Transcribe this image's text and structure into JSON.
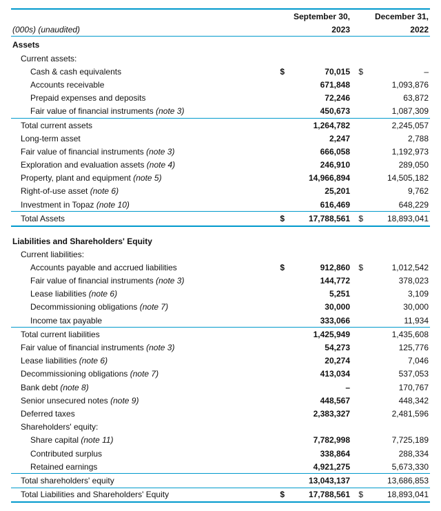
{
  "accent_color": "#0099cc",
  "header": {
    "col1a": "September 30,",
    "col1b": "2023",
    "col2a": "December 31,",
    "col2b": "2022",
    "left_label": "(000s) (unaudited)"
  },
  "sections": {
    "assets_title": "Assets",
    "current_assets_title": "Current assets:",
    "cash": {
      "label": "Cash & cash equivalents",
      "sym1": "$",
      "v1": "70,015",
      "sym2": "$",
      "v2": "–"
    },
    "ar": {
      "label": "Accounts receivable",
      "v1": "671,848",
      "v2": "1,093,876"
    },
    "prepaid": {
      "label": "Prepaid expenses and deposits",
      "v1": "72,246",
      "v2": "63,872"
    },
    "fvfi_ca": {
      "label": "Fair value of financial instruments ",
      "note": "(note 3)",
      "v1": "450,673",
      "v2": "1,087,309"
    },
    "tca": {
      "label": "Total current assets",
      "v1": "1,264,782",
      "v2": "2,245,057"
    },
    "lta": {
      "label": "Long-term asset",
      "v1": "2,247",
      "v2": "2,788"
    },
    "fvfi_a": {
      "label": "Fair value of financial instruments ",
      "note": "(note 3)",
      "v1": "666,058",
      "v2": "1,192,973"
    },
    "ee": {
      "label": "Exploration and evaluation assets ",
      "note": "(note 4)",
      "v1": "246,910",
      "v2": "289,050"
    },
    "ppe": {
      "label": "Property, plant and equipment ",
      "note": "(note 5)",
      "v1": "14,966,894",
      "v2": "14,505,182"
    },
    "rou": {
      "label": "Right-of-use asset ",
      "note": "(note 6)",
      "v1": "25,201",
      "v2": "9,762"
    },
    "topaz": {
      "label": "Investment in Topaz ",
      "note": "(note 10)",
      "v1": "616,469",
      "v2": "648,229"
    },
    "ta": {
      "label": "Total Assets",
      "sym1": "$",
      "v1": "17,788,561",
      "sym2": "$",
      "v2": "18,893,041"
    },
    "liab_title": "Liabilities and Shareholders' Equity",
    "cl_title": "Current liabilities:",
    "ap": {
      "label": "Accounts payable and accrued liabilities",
      "sym1": "$",
      "v1": "912,860",
      "sym2": "$",
      "v2": "1,012,542"
    },
    "fvfi_cl": {
      "label": "Fair value of financial instruments ",
      "note": "(note 3)",
      "v1": "144,772",
      "v2": "378,023"
    },
    "lease_cl": {
      "label": "Lease liabilities ",
      "note": "(note 6)",
      "v1": "5,251",
      "v2": "3,109"
    },
    "decom_cl": {
      "label": "Decommissioning obligations ",
      "note": "(note 7)",
      "v1": "30,000",
      "v2": "30,000"
    },
    "tax": {
      "label": "Income tax payable",
      "v1": "333,066",
      "v2": "11,934"
    },
    "tcl": {
      "label": "Total current liabilities",
      "v1": "1,425,949",
      "v2": "1,435,608"
    },
    "fvfi_l": {
      "label": "Fair value of financial instruments ",
      "note": "(note 3)",
      "v1": "54,273",
      "v2": "125,776"
    },
    "lease_l": {
      "label": "Lease liabilities ",
      "note": "(note 6)",
      "v1": "20,274",
      "v2": "7,046"
    },
    "decom_l": {
      "label": "Decommissioning obligations ",
      "note": "(note 7)",
      "v1": "413,034",
      "v2": "537,053"
    },
    "bank": {
      "label": "Bank debt ",
      "note": "(note 8)",
      "v1": "–",
      "v2": "170,767"
    },
    "notes": {
      "label": "Senior unsecured notes ",
      "note": "(note 9)",
      "v1": "448,567",
      "v2": "448,342"
    },
    "deftax": {
      "label": "Deferred taxes",
      "v1": "2,383,327",
      "v2": "2,481,596"
    },
    "se_title": "Shareholders' equity:",
    "sharecap": {
      "label": "Share capital ",
      "note": "(note 11)",
      "v1": "7,782,998",
      "v2": "7,725,189"
    },
    "contsurp": {
      "label": "Contributed surplus",
      "v1": "338,864",
      "v2": "288,334"
    },
    "re": {
      "label": "Retained earnings",
      "v1": "4,921,275",
      "v2": "5,673,330"
    },
    "tse": {
      "label": "Total shareholders' equity",
      "v1": "13,043,137",
      "v2": "13,686,853"
    },
    "tlse": {
      "label": "Total Liabilities and Shareholders' Equity",
      "sym1": "$",
      "v1": "17,788,561",
      "sym2": "$",
      "v2": "18,893,041"
    }
  }
}
